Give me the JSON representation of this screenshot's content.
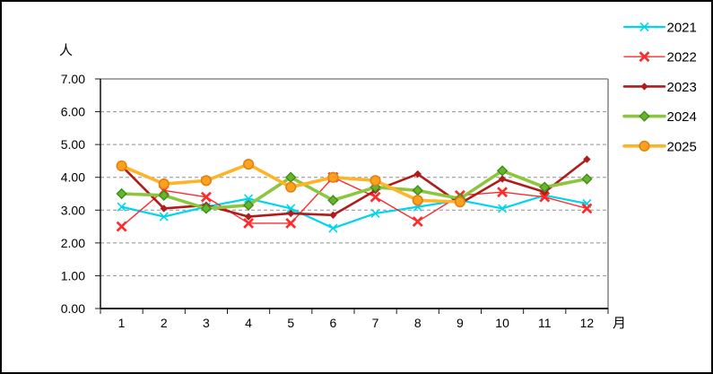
{
  "window": {
    "background": "#ffffff",
    "border_color": "#000000"
  },
  "chart_data": {
    "type": "line",
    "title": "",
    "y_axis_label": "人",
    "x_axis_label": "月",
    "x_categories": [
      "1",
      "2",
      "3",
      "4",
      "5",
      "6",
      "7",
      "8",
      "9",
      "10",
      "11",
      "12"
    ],
    "y_tick_labels": [
      "0.00",
      "1.00",
      "2.00",
      "3.00",
      "4.00",
      "5.00",
      "6.00",
      "7.00"
    ],
    "ylim": [
      0,
      7
    ],
    "y_step": 1,
    "grid": "horizontal-dashed",
    "grid_color": "#909090",
    "axis_color": "#1a1a1a",
    "plot_border_color": "#8a8a8a",
    "legend_position": "top-right",
    "series": [
      {
        "name": "2021",
        "color": "#00d5ee",
        "marker": "thin-x",
        "line_width": 2.2,
        "values": [
          3.1,
          2.8,
          3.1,
          3.35,
          3.05,
          2.45,
          2.9,
          3.1,
          3.3,
          3.05,
          3.45,
          3.2
        ]
      },
      {
        "name": "2022",
        "color": "#ff2a2a",
        "marker": "bold-x",
        "line_width": 1.4,
        "values": [
          2.5,
          3.6,
          3.4,
          2.6,
          2.6,
          4.0,
          3.4,
          2.65,
          3.45,
          3.55,
          3.4,
          3.05
        ]
      },
      {
        "name": "2023",
        "color": "#b01c1c",
        "marker": "filled-diamond",
        "line_width": 2.6,
        "values": [
          4.35,
          3.05,
          3.15,
          2.8,
          2.9,
          2.85,
          3.6,
          4.1,
          3.2,
          3.95,
          3.55,
          4.55
        ]
      },
      {
        "name": "2024",
        "color": "#8cc63e",
        "marker": "outlined-diamond",
        "marker_fill": "#68b52c",
        "marker_border": "#3e8e1d",
        "line_width": 3.6,
        "values": [
          3.5,
          3.45,
          3.05,
          3.15,
          4.0,
          3.3,
          3.7,
          3.6,
          3.35,
          4.2,
          3.7,
          3.95
        ]
      },
      {
        "name": "2025",
        "color": "#ffb329",
        "marker": "circle",
        "marker_fill": "#ffa11e",
        "marker_border": "#e0820f",
        "line_width": 3.6,
        "values": [
          4.35,
          3.8,
          3.9,
          4.4,
          3.7,
          4.0,
          3.9,
          3.3,
          3.25,
          null,
          null,
          null
        ]
      }
    ]
  }
}
